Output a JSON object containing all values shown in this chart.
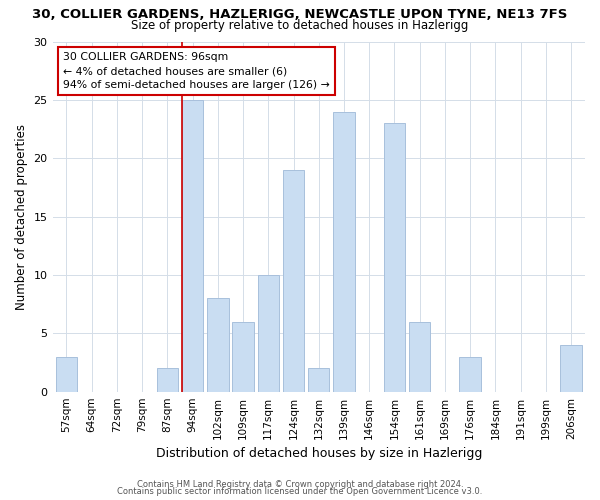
{
  "title": "30, COLLIER GARDENS, HAZLERIGG, NEWCASTLE UPON TYNE, NE13 7FS",
  "subtitle": "Size of property relative to detached houses in Hazlerigg",
  "xlabel": "Distribution of detached houses by size in Hazlerigg",
  "ylabel": "Number of detached properties",
  "bar_labels": [
    "57sqm",
    "64sqm",
    "72sqm",
    "79sqm",
    "87sqm",
    "94sqm",
    "102sqm",
    "109sqm",
    "117sqm",
    "124sqm",
    "132sqm",
    "139sqm",
    "146sqm",
    "154sqm",
    "161sqm",
    "169sqm",
    "176sqm",
    "184sqm",
    "191sqm",
    "199sqm",
    "206sqm"
  ],
  "bar_values": [
    3,
    0,
    0,
    0,
    2,
    25,
    8,
    6,
    10,
    19,
    2,
    24,
    0,
    23,
    6,
    0,
    3,
    0,
    0,
    0,
    4
  ],
  "bar_color": "#c9ddf2",
  "bar_edge_color": "#a8c0dc",
  "highlight_index": 5,
  "highlight_line_color": "#cc0000",
  "annotation_line1": "30 COLLIER GARDENS: 96sqm",
  "annotation_line2": "← 4% of detached houses are smaller (6)",
  "annotation_line3": "94% of semi-detached houses are larger (126) →",
  "annotation_box_color": "#ffffff",
  "annotation_box_edge_color": "#cc0000",
  "ylim": [
    0,
    30
  ],
  "yticks": [
    0,
    5,
    10,
    15,
    20,
    25,
    30
  ],
  "footer_line1": "Contains HM Land Registry data © Crown copyright and database right 2024.",
  "footer_line2": "Contains public sector information licensed under the Open Government Licence v3.0.",
  "background_color": "#ffffff",
  "grid_color": "#d4dde8"
}
